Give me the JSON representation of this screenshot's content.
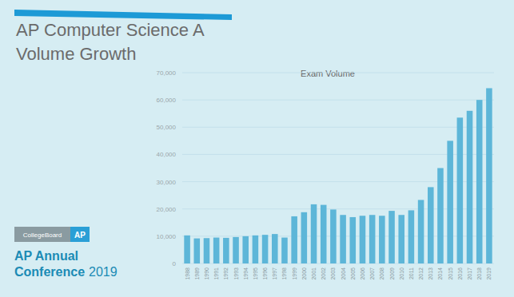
{
  "slide": {
    "title": [
      "AP Computer Science A",
      "Volume Growth"
    ],
    "logo": [
      "CollegeBoard",
      "AP"
    ],
    "conference": [
      "AP Annual",
      "Conference",
      "2019"
    ]
  },
  "chart_data": {
    "type": "bar",
    "title": "Exam Volume",
    "categories": [
      "1988",
      "1989",
      "1990",
      "1991",
      "1992",
      "1993",
      "1994",
      "1995",
      "1996",
      "1997",
      "1998",
      "1999",
      "2000",
      "2001",
      "2002",
      "2003",
      "2004",
      "2005",
      "2006",
      "2007",
      "2008",
      "2009",
      "2010",
      "2011",
      "2012",
      "2013",
      "2014",
      "2015",
      "2016",
      "2017",
      "2018",
      "2019"
    ],
    "values": [
      10300,
      9200,
      9300,
      9500,
      9400,
      9700,
      10000,
      10300,
      10500,
      10800,
      9500,
      17300,
      18800,
      21700,
      21500,
      19800,
      17800,
      17000,
      17500,
      17800,
      17500,
      19300,
      17800,
      19500,
      23300,
      28000,
      35000,
      45000,
      53500,
      56000,
      60000,
      64300
    ],
    "color": "#5db6d8",
    "ylim": [
      0,
      70000
    ],
    "yticks": [
      0,
      {
        "value": 10000,
        "label": "10,000"
      },
      {
        "value": 20000,
        "label": "20,000"
      },
      {
        "value": 30000,
        "label": "30,000"
      },
      {
        "value": 40000,
        "label": "40,000"
      },
      {
        "value": 50000,
        "label": "50,000"
      },
      {
        "value": 60000,
        "label": "60,000"
      },
      {
        "value": 70000,
        "label": "70,000"
      }
    ],
    "grid": true
  }
}
